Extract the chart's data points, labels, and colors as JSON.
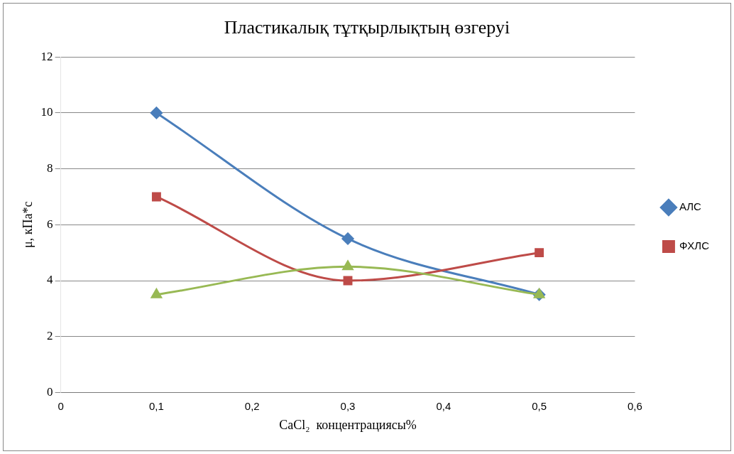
{
  "chart_data": {
    "type": "line",
    "title": "Пластикалық тұтқырлықтың өзгеруі",
    "xlabel": "CaCl₂  концентрациясы%",
    "ylabel": "μ, кПа*с",
    "x": [
      0.1,
      0.3,
      0.5
    ],
    "series": [
      {
        "name": "АЛС",
        "color": "#4a7ebb",
        "marker": "diamond",
        "values": [
          10,
          5.5,
          3.5
        ]
      },
      {
        "name": "ФХЛС",
        "color": "#be4b48",
        "marker": "square",
        "values": [
          7,
          4,
          5
        ]
      },
      {
        "color": "#98b954",
        "marker": "triangle",
        "values": [
          3.5,
          4.5,
          3.5
        ]
      }
    ],
    "xlim": [
      0,
      0.6
    ],
    "xticks": [
      0,
      {
        "value": 0.1,
        "label": "0,1"
      },
      {
        "value": 0.2,
        "label": "0,2"
      },
      {
        "value": 0.3,
        "label": "0,3"
      },
      {
        "value": 0.4,
        "label": "0,4"
      },
      {
        "value": 0.5,
        "label": "0,5"
      },
      {
        "value": 0.6,
        "label": "0,6"
      }
    ],
    "ylim": [
      0,
      12
    ],
    "yticks": [
      0,
      2,
      4,
      6,
      8,
      10,
      12
    ],
    "grid": "y",
    "legend": "right"
  }
}
